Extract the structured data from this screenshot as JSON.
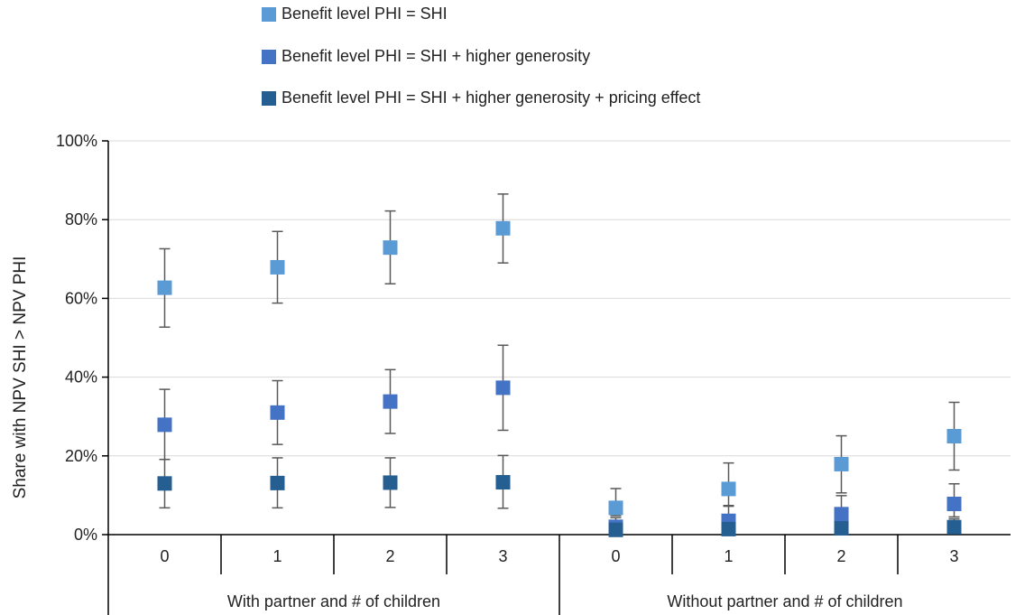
{
  "chart_data": {
    "type": "scatter",
    "ylabel": "Share with NPV SHI > NPV PHI",
    "ylim": [
      0,
      100
    ],
    "yticks": [
      "0%",
      "20%",
      "40%",
      "60%",
      "80%",
      "100%"
    ],
    "ytick_values": [
      0,
      20,
      40,
      60,
      80,
      100
    ],
    "grid": true,
    "legend_position": "top",
    "groups": [
      "With partner and # of children",
      "Without partner and # of children"
    ],
    "categories": [
      "0",
      "1",
      "2",
      "3",
      "0",
      "1",
      "2",
      "3"
    ],
    "series": [
      {
        "name": "Benefit level PHI = SHI",
        "color": "#5B9BD5",
        "values": [
          62.7,
          67.9,
          72.9,
          77.8,
          6.8,
          11.6,
          17.9,
          25.0
        ],
        "err_low": [
          52.7,
          58.8,
          63.7,
          69.0,
          4.8,
          7.4,
          10.6,
          16.4
        ],
        "err_high": [
          72.6,
          77.0,
          82.2,
          86.5,
          11.7,
          18.2,
          25.1,
          33.6
        ]
      },
      {
        "name": "Benefit level PHI = SHI + higher generosity",
        "color": "#4472C4",
        "values": [
          27.9,
          31.0,
          33.8,
          37.3,
          2.0,
          3.5,
          5.2,
          7.8
        ],
        "err_low": [
          19.1,
          22.9,
          25.7,
          26.5,
          1.0,
          1.8,
          2.8,
          4.5
        ],
        "err_high": [
          36.9,
          39.1,
          41.9,
          48.1,
          4.3,
          7.2,
          9.9,
          12.9
        ]
      },
      {
        "name": "Benefit level PHI = SHI + higher generosity + pricing effect",
        "color": "#255E91",
        "values": [
          13.0,
          13.1,
          13.2,
          13.3,
          1.2,
          1.4,
          1.6,
          1.9
        ],
        "err_low": [
          6.8,
          6.8,
          6.9,
          6.7,
          0.4,
          0.5,
          0.6,
          0.7
        ],
        "err_high": [
          19.1,
          19.5,
          19.5,
          20.1,
          2.5,
          3.0,
          3.6,
          4.0
        ]
      }
    ]
  }
}
